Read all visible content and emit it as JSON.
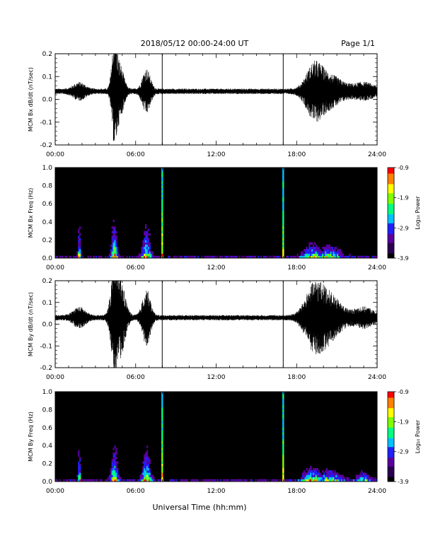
{
  "header": {
    "title": "2018/05/12  00:00-24:00 UT",
    "page": "Page 1/1"
  },
  "footer": {
    "xlabel": "Universal Time (hh:mm)"
  },
  "colors": {
    "trace": "#000000",
    "spectrogram_bg": "#000000",
    "colormap": [
      "#000000",
      "#2a0050",
      "#5a00a0",
      "#2020ff",
      "#00c0ff",
      "#00ff80",
      "#80ff00",
      "#ffff00",
      "#ff8000",
      "#ff0000"
    ]
  },
  "chart_data": [
    {
      "type": "line",
      "ylabel": "MCM Bx dB/dt (nT/sec)",
      "xlim": [
        0,
        24
      ],
      "ylim": [
        -0.2,
        0.2
      ],
      "x_ticks": [
        "00:00",
        "06:00",
        "12:00",
        "18:00",
        "24:00"
      ],
      "y_ticks": [
        "0.2",
        "0.1",
        "0.0",
        "-0.1",
        "-0.2"
      ],
      "baseline": 0.035,
      "activity": [
        {
          "center": 4.4,
          "width": 0.25,
          "amplitude": 0.19
        },
        {
          "center": 4.8,
          "width": 0.4,
          "amplitude": 0.11
        },
        {
          "center": 6.8,
          "width": 0.4,
          "amplitude": 0.09
        },
        {
          "center": 1.8,
          "width": 0.6,
          "amplitude": 0.03
        },
        {
          "center": 19.3,
          "width": 0.8,
          "amplitude": 0.1
        },
        {
          "center": 20.5,
          "width": 1.2,
          "amplitude": 0.06
        },
        {
          "center": 23.0,
          "width": 1.0,
          "amplitude": 0.03
        }
      ],
      "spikes": [
        {
          "time": 7.98,
          "min": -0.2,
          "max": 0.2
        },
        {
          "time": 17.0,
          "min": -0.2,
          "max": 0.2
        }
      ]
    },
    {
      "type": "heatmap",
      "ylabel": "MCM Bx Freq (Hz)",
      "colorbar_label": "Log₁₀ Power",
      "colorbar_ticks": [
        "-0.9",
        "-1.9",
        "-2.9",
        "-3.9"
      ],
      "clim": [
        -3.9,
        -0.9
      ],
      "xlim": [
        0,
        24
      ],
      "ylim": [
        0.0,
        1.0
      ],
      "x_ticks": [
        "00:00",
        "06:00",
        "12:00",
        "18:00",
        "24:00"
      ],
      "y_ticks": [
        "1.0",
        "0.8",
        "0.6",
        "0.4",
        "0.2",
        "0.0"
      ],
      "bursts": [
        {
          "center": 1.8,
          "width": 0.12,
          "strength": 0.75,
          "reach": 0.85
        },
        {
          "center": 4.4,
          "width": 0.25,
          "strength": 0.85,
          "reach": 0.9
        },
        {
          "center": 6.8,
          "width": 0.35,
          "strength": 0.8,
          "reach": 0.8
        },
        {
          "center": 19.2,
          "width": 0.8,
          "strength": 0.7,
          "reach": 0.3
        },
        {
          "center": 20.5,
          "width": 0.9,
          "strength": 0.65,
          "reach": 0.25
        }
      ],
      "spikes": [
        {
          "time": 7.98,
          "strength": 1.0
        },
        {
          "time": 17.0,
          "strength": 0.95
        }
      ]
    },
    {
      "type": "line",
      "ylabel": "MCM By dB/dt (nT/sec)",
      "xlim": [
        0,
        24
      ],
      "ylim": [
        -0.2,
        0.2
      ],
      "x_ticks": [
        "00:00",
        "06:00",
        "12:00",
        "18:00",
        "24:00"
      ],
      "y_ticks": [
        "0.2",
        "0.1",
        "0.0",
        "-0.1",
        "-0.2"
      ],
      "baseline": 0.03,
      "activity": [
        {
          "center": 4.4,
          "width": 0.35,
          "amplitude": 0.2
        },
        {
          "center": 4.9,
          "width": 0.45,
          "amplitude": 0.15
        },
        {
          "center": 6.8,
          "width": 0.4,
          "amplitude": 0.12
        },
        {
          "center": 1.8,
          "width": 0.6,
          "amplitude": 0.04
        },
        {
          "center": 19.3,
          "width": 0.9,
          "amplitude": 0.13
        },
        {
          "center": 20.5,
          "width": 1.1,
          "amplitude": 0.09
        },
        {
          "center": 23.0,
          "width": 1.0,
          "amplitude": 0.04
        }
      ],
      "spikes": [
        {
          "time": 7.98,
          "min": -0.2,
          "max": 0.2
        },
        {
          "time": 17.0,
          "min": -0.2,
          "max": 0.2
        }
      ]
    },
    {
      "type": "heatmap",
      "ylabel": "MCM By Freq (Hz)",
      "colorbar_label": "Log₁₀ Power",
      "colorbar_ticks": [
        "-0.9",
        "-1.9",
        "-2.9",
        "-3.9"
      ],
      "clim": [
        -3.9,
        -0.9
      ],
      "xlim": [
        0,
        24
      ],
      "ylim": [
        0.0,
        1.0
      ],
      "x_ticks": [
        "00:00",
        "06:00",
        "12:00",
        "18:00",
        "24:00"
      ],
      "y_ticks": [
        "1.0",
        "0.8",
        "0.6",
        "0.4",
        "0.2",
        "0.0"
      ],
      "bursts": [
        {
          "center": 1.8,
          "width": 0.12,
          "strength": 0.75,
          "reach": 0.85
        },
        {
          "center": 4.4,
          "width": 0.3,
          "strength": 0.85,
          "reach": 0.9
        },
        {
          "center": 6.8,
          "width": 0.35,
          "strength": 0.8,
          "reach": 0.8
        },
        {
          "center": 19.2,
          "width": 0.8,
          "strength": 0.7,
          "reach": 0.3
        },
        {
          "center": 20.5,
          "width": 0.9,
          "strength": 0.65,
          "reach": 0.25
        },
        {
          "center": 23.0,
          "width": 0.6,
          "strength": 0.5,
          "reach": 0.2
        }
      ],
      "spikes": [
        {
          "time": 7.98,
          "strength": 1.0
        },
        {
          "time": 17.0,
          "strength": 0.95
        }
      ]
    }
  ]
}
